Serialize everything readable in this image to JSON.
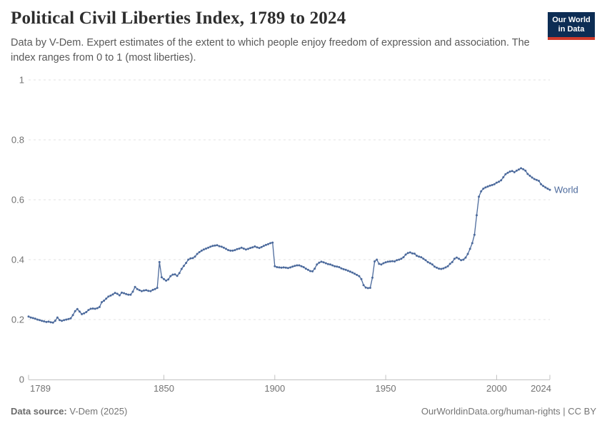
{
  "header": {
    "title": "Political Civil Liberties Index, 1789 to 2024",
    "subtitle": "Data by V-Dem. Expert estimates of the extent to which people enjoy freedom of expression and association. The index ranges from 0 to 1 (most liberties).",
    "logo": {
      "line1": "Our World",
      "line2": "in Data"
    }
  },
  "footer": {
    "source_label": "Data source:",
    "source_value": " V-Dem (2025)",
    "credit": "OurWorldinData.org/human-rights | CC BY"
  },
  "colors": {
    "series_blue": "#4C6A9C",
    "logo_navy": "#0d2d54",
    "logo_red": "#d03a2b",
    "gridline": "#e0e0e0",
    "tick_text": "#737373"
  },
  "chart_data": {
    "type": "line",
    "title": "Political Civil Liberties Index, 1789 to 2024",
    "xlabel": "",
    "ylabel": "",
    "xlim": [
      1789,
      2024
    ],
    "ylim": [
      0,
      1
    ],
    "x_ticks": [
      1789,
      1850,
      1900,
      1950,
      2000,
      2024
    ],
    "y_ticks": [
      0,
      0.2,
      0.4,
      0.6,
      0.8,
      1
    ],
    "grid": "horizontal-dashed",
    "legend_position": "end-of-line",
    "series": [
      {
        "name": "World",
        "color": "#4C6A9C",
        "start_year": 1789,
        "end_year": 2024,
        "values": [
          0.21,
          0.207,
          0.205,
          0.203,
          0.2,
          0.198,
          0.196,
          0.194,
          0.192,
          0.193,
          0.191,
          0.19,
          0.196,
          0.207,
          0.198,
          0.196,
          0.198,
          0.2,
          0.202,
          0.204,
          0.215,
          0.228,
          0.235,
          0.227,
          0.218,
          0.221,
          0.225,
          0.232,
          0.236,
          0.237,
          0.236,
          0.238,
          0.242,
          0.258,
          0.263,
          0.27,
          0.277,
          0.28,
          0.284,
          0.289,
          0.286,
          0.281,
          0.29,
          0.288,
          0.285,
          0.283,
          0.283,
          0.293,
          0.309,
          0.302,
          0.298,
          0.295,
          0.297,
          0.298,
          0.296,
          0.295,
          0.299,
          0.302,
          0.306,
          0.392,
          0.341,
          0.335,
          0.33,
          0.334,
          0.345,
          0.35,
          0.351,
          0.346,
          0.355,
          0.369,
          0.379,
          0.389,
          0.4,
          0.404,
          0.405,
          0.41,
          0.419,
          0.425,
          0.43,
          0.434,
          0.437,
          0.44,
          0.443,
          0.446,
          0.447,
          0.448,
          0.445,
          0.443,
          0.44,
          0.436,
          0.432,
          0.43,
          0.43,
          0.432,
          0.435,
          0.437,
          0.44,
          0.437,
          0.434,
          0.436,
          0.439,
          0.441,
          0.444,
          0.441,
          0.439,
          0.442,
          0.446,
          0.449,
          0.452,
          0.455,
          0.457,
          0.378,
          0.375,
          0.374,
          0.373,
          0.374,
          0.373,
          0.372,
          0.374,
          0.377,
          0.379,
          0.381,
          0.381,
          0.378,
          0.375,
          0.37,
          0.366,
          0.362,
          0.361,
          0.37,
          0.384,
          0.39,
          0.393,
          0.391,
          0.388,
          0.385,
          0.384,
          0.381,
          0.378,
          0.377,
          0.375,
          0.371,
          0.368,
          0.366,
          0.363,
          0.36,
          0.357,
          0.353,
          0.349,
          0.345,
          0.335,
          0.315,
          0.307,
          0.305,
          0.306,
          0.34,
          0.394,
          0.4,
          0.386,
          0.384,
          0.388,
          0.391,
          0.393,
          0.394,
          0.395,
          0.394,
          0.398,
          0.4,
          0.403,
          0.408,
          0.417,
          0.422,
          0.424,
          0.421,
          0.42,
          0.413,
          0.41,
          0.408,
          0.403,
          0.398,
          0.392,
          0.388,
          0.384,
          0.377,
          0.373,
          0.37,
          0.369,
          0.371,
          0.374,
          0.378,
          0.386,
          0.392,
          0.403,
          0.407,
          0.403,
          0.398,
          0.4,
          0.407,
          0.419,
          0.436,
          0.455,
          0.483,
          0.548,
          0.61,
          0.628,
          0.637,
          0.641,
          0.644,
          0.647,
          0.649,
          0.652,
          0.657,
          0.66,
          0.665,
          0.675,
          0.685,
          0.69,
          0.694,
          0.696,
          0.692,
          0.697,
          0.701,
          0.705,
          0.702,
          0.697,
          0.686,
          0.68,
          0.674,
          0.669,
          0.666,
          0.663,
          0.652,
          0.646,
          0.641,
          0.637,
          0.633
        ]
      }
    ]
  }
}
